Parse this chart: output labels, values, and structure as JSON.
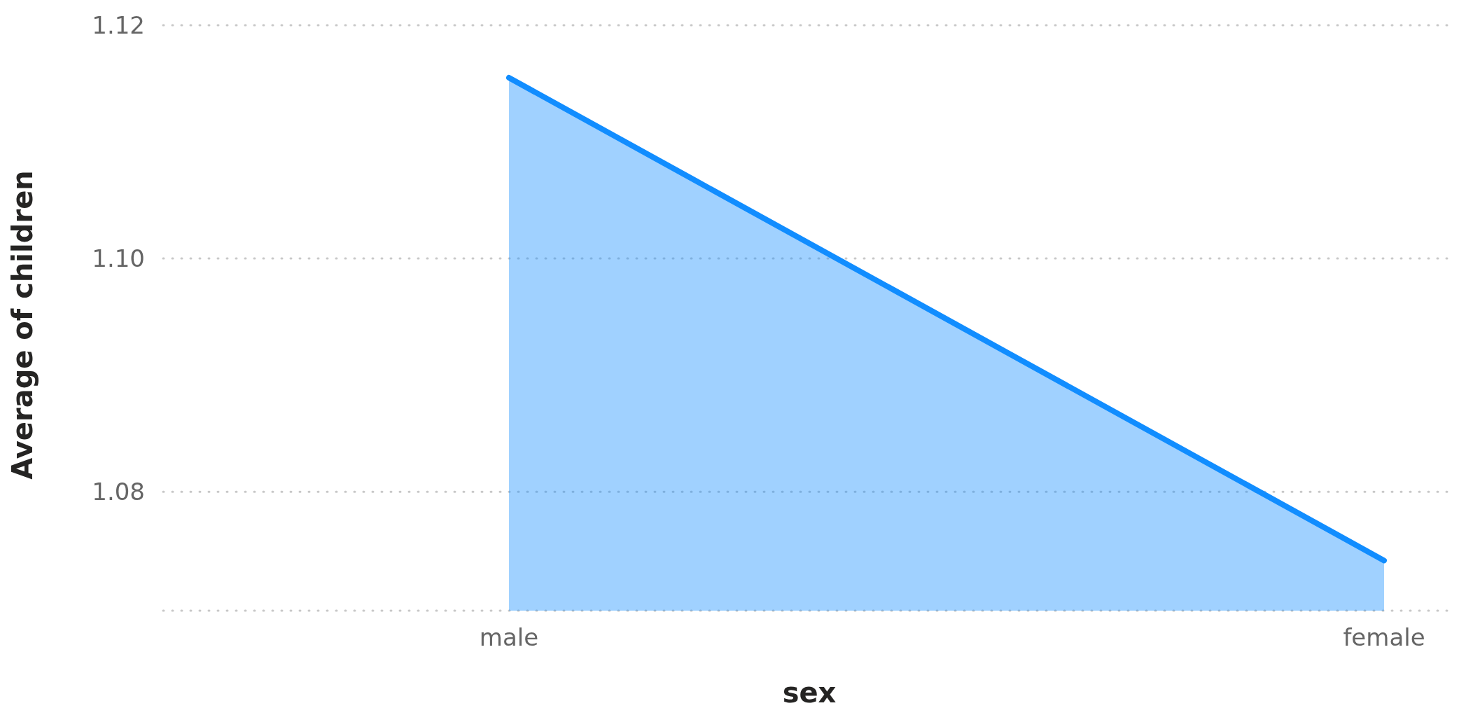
{
  "chart_data": {
    "type": "area",
    "xlabel": "sex",
    "ylabel": "Average of children",
    "categories": [
      "male",
      "female"
    ],
    "series": [
      {
        "color": "#118dff",
        "values": [
          1.1155,
          1.0741
        ]
      }
    ],
    "ylim": [
      1.0698,
      1.12
    ],
    "yticks": [
      {
        "value": 1.08,
        "label": "1.08"
      },
      {
        "value": 1.1,
        "label": "1.10"
      },
      {
        "value": 1.12,
        "label": "1.12"
      }
    ],
    "grid": "y",
    "legend": false
  }
}
